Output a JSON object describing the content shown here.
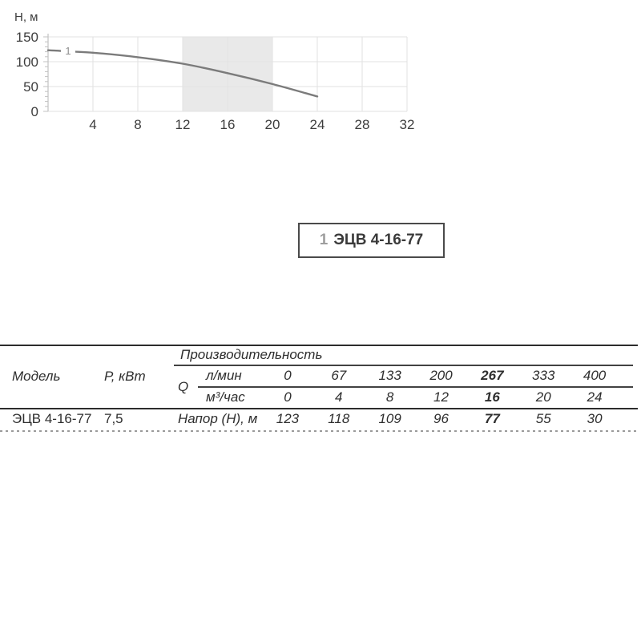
{
  "chart": {
    "y_axis_title": "Н, м",
    "y_ticks": [
      "150",
      "100",
      "50",
      "0"
    ],
    "x_ticks": [
      "4",
      "8",
      "12",
      "16",
      "20",
      "24",
      "28",
      "32"
    ],
    "curve_label": "1",
    "legend": {
      "number": "1",
      "model": "ЭЦВ 4-16-77"
    },
    "colors": {
      "curve": "#7b7b7b",
      "band": "#e9e9e9",
      "grid": "#e2e2e2",
      "axis": "#c2c2c2",
      "text": "#3d3d3d",
      "legend_number": "#9e9e9e",
      "legend_border": "#4a4a4a"
    }
  },
  "chart_data": {
    "type": "line",
    "title": "1 ЭЦВ 4-16-77",
    "xlabel": "",
    "ylabel": "Н, м",
    "xlim": [
      0,
      32
    ],
    "ylim": [
      0,
      150
    ],
    "x_tick_step": 4,
    "y_tick_step": 50,
    "grid": true,
    "legend_position": "top-right",
    "highlight_band_x": [
      12,
      20
    ],
    "series": [
      {
        "name": "ЭЦВ 4-16-77",
        "curve_number": "1",
        "x": [
          0,
          4,
          8,
          12,
          16,
          20,
          24
        ],
        "y": [
          123,
          118,
          109,
          96,
          77,
          55,
          30
        ]
      }
    ]
  },
  "table": {
    "model_header": "Модель",
    "power_header": "Р, кВт",
    "capacity_header": "Производительность",
    "q_label": "Q",
    "unit_lmin": "л/мин",
    "unit_m3h": "м³/час",
    "head_label": "Напор (Н), м",
    "flow_lmin": [
      "0",
      "67",
      "133",
      "200",
      "267",
      "333",
      "400"
    ],
    "flow_m3h": [
      "0",
      "4",
      "8",
      "12",
      "16",
      "20",
      "24"
    ],
    "head_values": [
      "123",
      "118",
      "109",
      "96",
      "77",
      "55",
      "30"
    ],
    "model": "ЭЦВ 4-16-77",
    "power": "7,5",
    "bold_column_index": 4
  }
}
